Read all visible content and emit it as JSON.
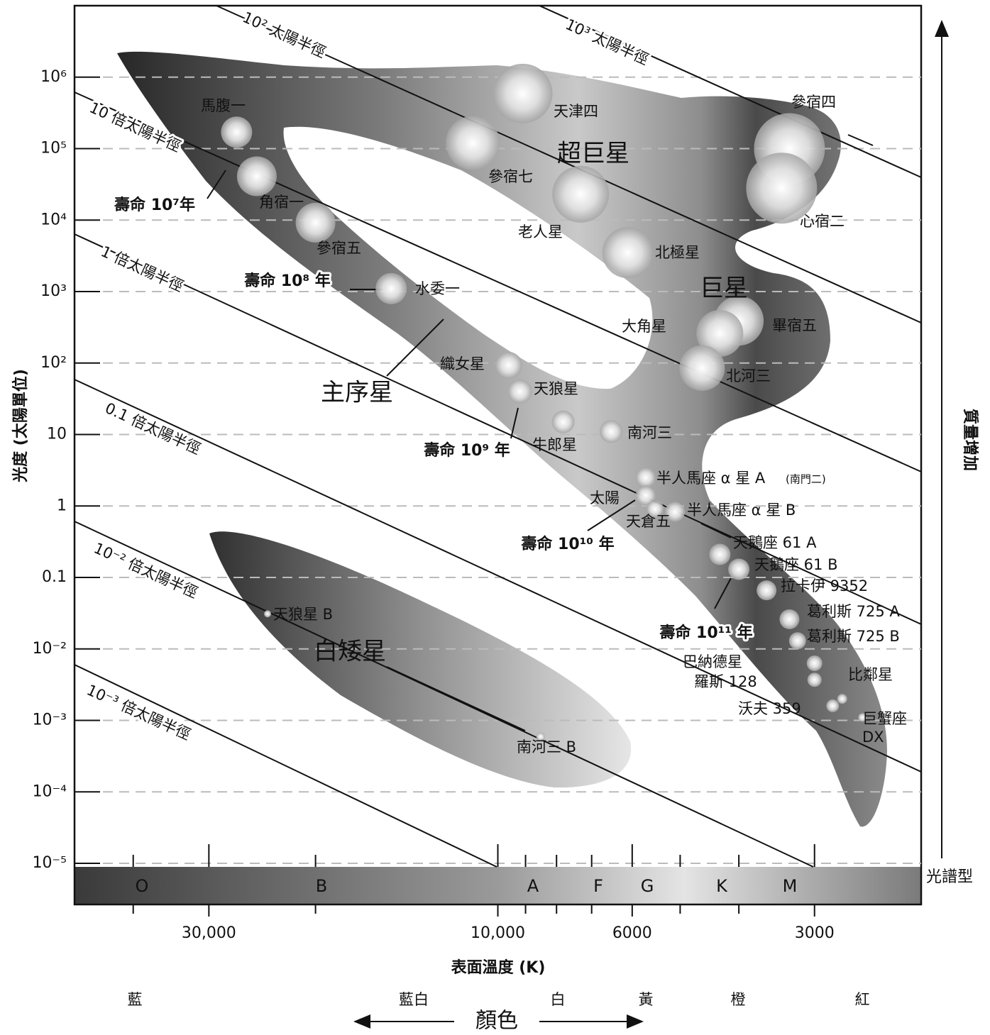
{
  "chart_data": {
    "type": "scatter",
    "xlabel": "表面溫度 (K)",
    "ylabel": "光度 (太陽單位)",
    "xlog": true,
    "ylog": true,
    "xlim": [
      50000,
      2000
    ],
    "ylim": [
      1e-05,
      10000000
    ],
    "xticks": [
      {
        "value": 30000,
        "label": "30,000"
      },
      {
        "value": 10000,
        "label": "10,000"
      },
      6000,
      3000
    ],
    "xminorticks": [
      40000,
      20000,
      9000,
      8000,
      7000,
      5000,
      4000
    ],
    "yticks": [
      {
        "value": 1e-05,
        "label": "10⁻⁵"
      },
      {
        "value": 0.0001,
        "label": "10⁻⁴"
      },
      {
        "value": 0.001,
        "label": "10⁻³"
      },
      {
        "value": 0.01,
        "label": "10⁻²"
      },
      0.1,
      1,
      10,
      {
        "value": 100,
        "label": "10²"
      },
      {
        "value": 1000,
        "label": "10³"
      },
      {
        "value": 10000,
        "label": "10⁴"
      },
      {
        "value": 100000,
        "label": "10⁵"
      },
      {
        "value": 1000000,
        "label": "10⁶"
      }
    ],
    "grid": true,
    "x": [
      27000,
      25000,
      20000,
      15000,
      9100,
      11000,
      7300,
      6100,
      3300,
      3400,
      4000,
      4300,
      4600,
      9600,
      9200,
      7800,
      6500,
      5700,
      5700,
      5500,
      5100,
      4300,
      4000,
      3600,
      3300,
      3200,
      3000,
      3000,
      2700,
      2800,
      2500,
      24000,
      8500
    ],
    "series": [
      {
        "values": [
          170000,
          41000,
          9200,
          1100,
          590000,
          120000,
          23000,
          3500,
          100000,
          28000,
          390,
          260,
          85,
          93,
          40,
          15,
          11,
          2.5,
          1.4,
          0.91,
          0.83,
          0.21,
          0.13,
          0.066,
          0.026,
          0.013,
          0.0063,
          0.0037,
          0.002,
          0.0016,
          0.0011,
          0.031,
          0.00059
        ],
        "sizes": [
          22,
          28,
          28,
          22,
          42,
          38,
          40,
          36,
          50,
          50,
          35,
          33,
          32,
          19,
          17,
          16,
          16,
          14,
          14,
          12,
          14,
          15,
          15,
          14,
          14,
          12,
          11,
          10,
          7,
          9,
          6,
          5,
          6
        ],
        "labels": [
          "馬腹一",
          "角宿一",
          "參宿五",
          "水委一",
          "天津四",
          "參宿七",
          "老人星",
          "北極星",
          "參宿四",
          "心宿二",
          "畢宿五",
          "大角星",
          "北河三",
          "織女星",
          "天狼星",
          "牛郎星",
          "南河三",
          "半人馬座 α 星 A",
          "太陽",
          "天倉五",
          "半人馬座 α 星 B",
          "天鵝座 61 A",
          "天鵝座 61 B",
          "拉卡伊 9352",
          "葛利斯 725 A",
          "葛利斯 725 B",
          "巴納德星",
          "羅斯 128",
          "比鄰星",
          "沃夫 359",
          [
            "巨蟹座",
            "DX"
          ],
          "天狼星 B",
          "南河三 B"
        ]
      }
    ],
    "annotations": [
      "(南門二)"
    ],
    "region_labels": [
      "超巨星",
      "巨星",
      "主序星",
      "白矮星"
    ],
    "radius_labels": [
      "10² 太陽半徑",
      "10³ 太陽半徑",
      "10 倍太陽半徑",
      "1 倍太陽半徑",
      "0.1 倍太陽半徑",
      "10⁻² 倍太陽半徑",
      "10⁻³ 倍太陽半徑"
    ],
    "lifetime_labels": [
      "壽命 10⁷年",
      "壽命 10⁸ 年",
      "壽命 10⁹ 年",
      "壽命 10¹⁰ 年",
      "壽命 10¹¹ 年"
    ],
    "spectral_label": "光譜型",
    "spectral_classes": [
      "O",
      "B",
      "A",
      "F",
      "G",
      "K",
      "M"
    ],
    "mass_label": "質量增加",
    "color_label": "顏色",
    "colors": [
      "藍",
      "藍白",
      "白",
      "黃",
      "橙",
      "紅"
    ]
  }
}
